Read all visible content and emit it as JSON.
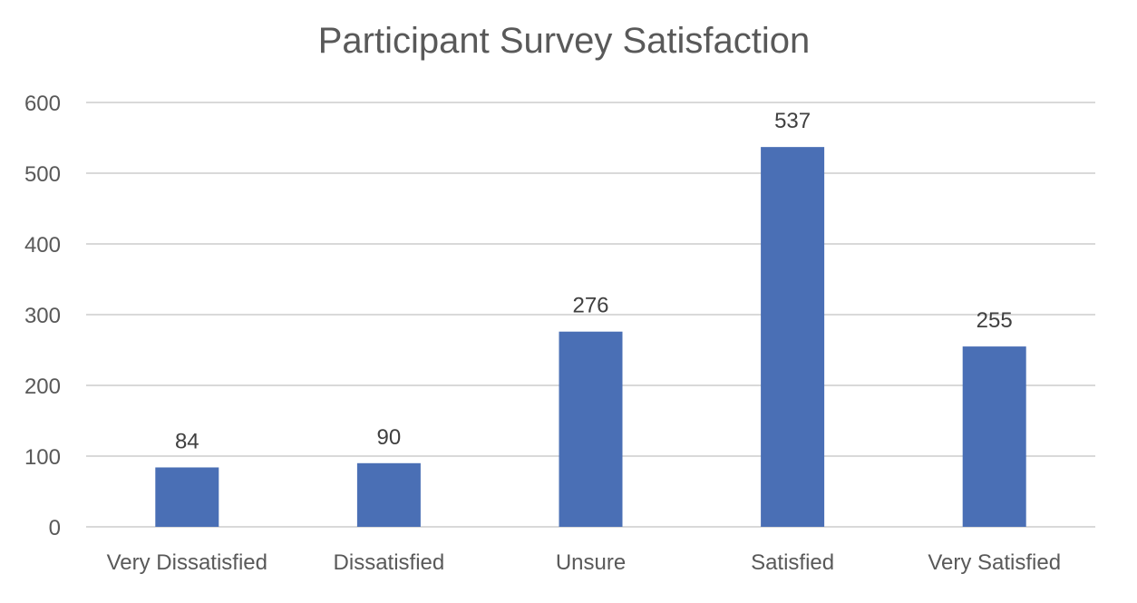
{
  "chart_data": {
    "type": "bar",
    "title": "Participant Survey Satisfaction",
    "xlabel": "",
    "ylabel": "",
    "categories": [
      "Very Dissatisfied",
      "Dissatisfied",
      "Unsure",
      "Satisfied",
      "Very Satisfied"
    ],
    "values": [
      84,
      90,
      276,
      537,
      255
    ],
    "data_labels": [
      "84",
      "90",
      "276",
      "537",
      "255"
    ],
    "ylim": [
      0,
      600
    ],
    "yticks": [
      0,
      100,
      200,
      300,
      400,
      500,
      600
    ],
    "ytick_labels": [
      "0",
      "100",
      "200",
      "300",
      "400",
      "500",
      "600"
    ],
    "grid": true,
    "legend": "none",
    "bar_color": "#4a6fb5"
  }
}
